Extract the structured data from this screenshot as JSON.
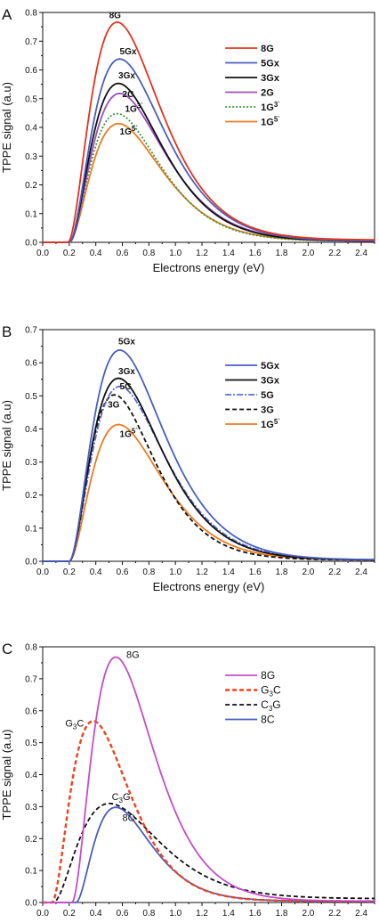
{
  "chart_data": [
    {
      "type": "line",
      "panel_letter": "A",
      "xlabel": "Electrons energy (eV)",
      "ylabel": "TPPE signal (a.u)",
      "xlim": [
        0.0,
        2.5
      ],
      "ylim": [
        0.0,
        0.8
      ],
      "x_ticks": [
        "0.0",
        "0.2",
        "0.4",
        "0.6",
        "0.8",
        "1.0",
        "1.2",
        "1.4",
        "1.6",
        "1.8",
        "2.0",
        "2.2",
        "2.4"
      ],
      "y_ticks": [
        "0.0",
        "0.1",
        "0.2",
        "0.3",
        "0.4",
        "0.5",
        "0.6",
        "0.7",
        "0.8"
      ],
      "grid": false,
      "legend_position": "top-right",
      "series": [
        {
          "name": "8G",
          "label": "8G",
          "color": "#e8321e",
          "dash": "solid",
          "peak": 0.76,
          "peak_x": 0.56,
          "onset": 0.19,
          "tail": 0.008
        },
        {
          "name": "5Gx",
          "label": "5Gx",
          "color": "#4a5fc1",
          "dash": "solid",
          "peak": 0.635,
          "peak_x": 0.58,
          "onset": 0.2,
          "tail": 0.004
        },
        {
          "name": "3Gx",
          "label": "3Gx",
          "color": "#111111",
          "dash": "solid",
          "peak": 0.55,
          "peak_x": 0.57,
          "onset": 0.2,
          "tail": 0.004
        },
        {
          "name": "2G",
          "label": "2G",
          "color": "#9a4fc2",
          "dash": "solid",
          "peak": 0.515,
          "peak_x": 0.58,
          "onset": 0.2,
          "tail": 0.004
        },
        {
          "name": "1G3'",
          "label": "1G",
          "sup": "3`",
          "color": "#3a9a3a",
          "dash": "dot",
          "peak": 0.445,
          "peak_x": 0.56,
          "onset": 0.2,
          "tail": 0.004
        },
        {
          "name": "1G5'",
          "label": "1G",
          "sup": "5`",
          "color": "#f07a1e",
          "dash": "solid",
          "peak": 0.41,
          "peak_x": 0.57,
          "onset": 0.2,
          "tail": 0.004
        }
      ],
      "annotations": [
        {
          "text": "8G",
          "x": 0.5,
          "y": 0.78
        },
        {
          "text": "5Gx",
          "x": 0.58,
          "y": 0.655
        },
        {
          "text": "3Gx",
          "x": 0.57,
          "y": 0.57
        },
        {
          "text": "2G",
          "x": 0.6,
          "y": 0.505
        },
        {
          "text": "1G",
          "sup": "3`",
          "x": 0.62,
          "y": 0.455
        },
        {
          "text": "1G",
          "sup": "5`",
          "x": 0.58,
          "y": 0.375
        }
      ]
    },
    {
      "type": "line",
      "panel_letter": "B",
      "xlabel": "Electrons energy (eV)",
      "ylabel": "TPPE signal (a.u)",
      "xlim": [
        0.0,
        2.5
      ],
      "ylim": [
        0.0,
        0.7
      ],
      "x_ticks": [
        "0.0",
        "0.2",
        "0.4",
        "0.6",
        "0.8",
        "1.0",
        "1.2",
        "1.4",
        "1.6",
        "1.8",
        "2.0",
        "2.2",
        "2.4"
      ],
      "y_ticks": [
        "0.0",
        "0.1",
        "0.2",
        "0.3",
        "0.4",
        "0.5",
        "0.6",
        "0.7"
      ],
      "grid": false,
      "legend_position": "top-right",
      "series": [
        {
          "name": "5Gx",
          "label": "5Gx",
          "color": "#4a5fc1",
          "dash": "solid",
          "peak": 0.635,
          "peak_x": 0.58,
          "onset": 0.2,
          "tail": 0.004
        },
        {
          "name": "3Gx",
          "label": "3Gx",
          "color": "#111111",
          "dash": "solid",
          "peak": 0.55,
          "peak_x": 0.57,
          "onset": 0.2,
          "tail": 0.004
        },
        {
          "name": "5G",
          "label": "5G",
          "color": "#5a6fd0",
          "dash": "dashdot",
          "peak": 0.525,
          "peak_x": 0.58,
          "onset": 0.2,
          "tail": 0.004
        },
        {
          "name": "3G",
          "label": "3G",
          "color": "#111111",
          "dash": "dash",
          "peak": 0.5,
          "peak_x": 0.54,
          "onset": 0.2,
          "tail": 0.004
        },
        {
          "name": "1G5'",
          "label": "1G",
          "sup": "5`",
          "color": "#f07a1e",
          "dash": "solid",
          "peak": 0.41,
          "peak_x": 0.57,
          "onset": 0.2,
          "tail": 0.004
        }
      ],
      "annotations": [
        {
          "text": "5Gx",
          "x": 0.57,
          "y": 0.655
        },
        {
          "text": "3Gx",
          "x": 0.57,
          "y": 0.565
        },
        {
          "text": "5G",
          "x": 0.58,
          "y": 0.52
        },
        {
          "text": "3G",
          "x": 0.49,
          "y": 0.465
        },
        {
          "text": "1G",
          "sup": "5`",
          "x": 0.58,
          "y": 0.375
        }
      ]
    },
    {
      "type": "line",
      "panel_letter": "C",
      "xlabel": "Electrons energy (eV)",
      "ylabel": "TPPE signal (a.u)",
      "xlim": [
        0.0,
        2.5
      ],
      "ylim": [
        0.0,
        0.8
      ],
      "x_ticks": [
        "0.0",
        "0.2",
        "0.4",
        "0.6",
        "0.8",
        "1.0",
        "1.2",
        "1.4",
        "1.6",
        "1.8",
        "2.0",
        "2.2",
        "2.4"
      ],
      "y_ticks": [
        "0.0",
        "0.1",
        "0.2",
        "0.3",
        "0.4",
        "0.5",
        "0.6",
        "0.7",
        "0.8"
      ],
      "grid": false,
      "legend_position": "top-right",
      "series": [
        {
          "name": "8G",
          "label": "8G",
          "color": "#c44dc8",
          "dash": "solid",
          "peak": 0.765,
          "peak_x": 0.55,
          "onset": 0.22,
          "tail": 0.004
        },
        {
          "name": "G3C",
          "label": "G",
          "sub": "3",
          "label_end": "C",
          "color": "#f0421e",
          "dash": "dash-thick",
          "peak": 0.565,
          "peak_x": 0.38,
          "onset": 0.07,
          "tail": 0.004
        },
        {
          "name": "C3G",
          "label": "C",
          "sub": "3",
          "label_end": "G",
          "color": "#111111",
          "dash": "dash",
          "peak": 0.3,
          "peak_x": 0.5,
          "onset": 0.08,
          "tail": 0.012
        },
        {
          "name": "8C",
          "label": "8C",
          "color": "#4a5fc1",
          "dash": "solid",
          "peak": 0.295,
          "peak_x": 0.55,
          "onset": 0.25,
          "tail": 0.004
        }
      ],
      "annotations": [
        {
          "text": "8G",
          "x": 0.63,
          "y": 0.765
        },
        {
          "text": "G",
          "sub": "3",
          "text_end": "C",
          "x": 0.17,
          "y": 0.55
        },
        {
          "text": "C",
          "sub": "3",
          "text_end": "G",
          "x": 0.52,
          "y": 0.32
        },
        {
          "text": "8C",
          "x": 0.6,
          "y": 0.255
        }
      ]
    }
  ]
}
